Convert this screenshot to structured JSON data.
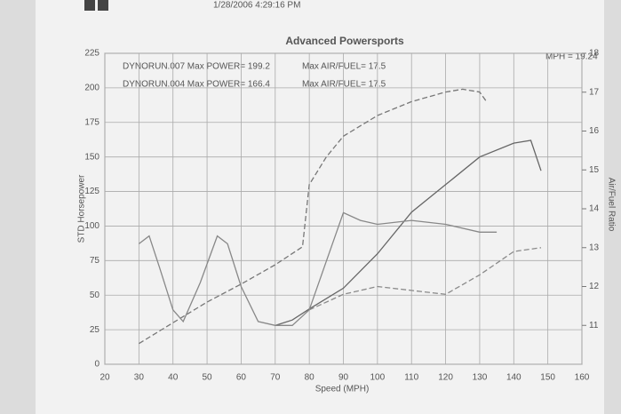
{
  "chart_data": {
    "type": "line",
    "header": "1/28/2006 4:29:16 PM",
    "title": "Advanced Powersports",
    "annotations": [
      "DYNORUN.007 Max POWER= 199.2",
      "Max AIR/FUEL= 17.5",
      "DYNORUN.004 Max POWER= 166.4",
      "Max AIR/FUEL= 17.5",
      "MPH = 19.24"
    ],
    "xlabel": "Speed (MPH)",
    "ylabel": "STD Horsepower",
    "y2label": "Air/Fuel Ratio",
    "xlim": [
      20,
      160
    ],
    "xticks": [
      20,
      30,
      40,
      50,
      60,
      70,
      80,
      90,
      100,
      110,
      120,
      130,
      140,
      150,
      160
    ],
    "ylim": [
      0,
      225
    ],
    "yticks": [
      0,
      25,
      50,
      75,
      100,
      125,
      150,
      175,
      200,
      225
    ],
    "y2lim": [
      10,
      18
    ],
    "y2ticks": [
      11,
      12,
      13,
      14,
      15,
      16,
      17,
      18
    ],
    "grid": true,
    "series": [
      {
        "color": "#777777",
        "dashed": true,
        "x": [
          30,
          40,
          50,
          60,
          70,
          78,
          80,
          85,
          90,
          100,
          110,
          120,
          125,
          130,
          132
        ],
        "values": [
          15,
          30,
          45,
          58,
          72,
          85,
          130,
          150,
          165,
          180,
          190,
          197,
          199,
          197,
          190
        ]
      },
      {
        "color": "#666666",
        "dashed": false,
        "x": [
          70,
          75,
          80,
          90,
          100,
          110,
          120,
          130,
          140,
          145,
          148
        ],
        "values": [
          28,
          32,
          40,
          55,
          80,
          110,
          130,
          150,
          160,
          162,
          140
        ]
      },
      {
        "color": "#888888",
        "dashed": false,
        "axis": "y2",
        "x": [
          30,
          33,
          36,
          40,
          43,
          48,
          53,
          56,
          60,
          65,
          70,
          75,
          80,
          90,
          95,
          100,
          110,
          120,
          130,
          135
        ],
        "values": [
          13.1,
          13.3,
          12.5,
          11.4,
          11.1,
          12.1,
          13.3,
          13.1,
          12.0,
          11.1,
          11.0,
          11.0,
          11.4,
          13.9,
          13.7,
          13.6,
          13.7,
          13.6,
          13.4,
          13.4
        ]
      },
      {
        "color": "#8a8a8a",
        "dashed": true,
        "axis": "y2",
        "x": [
          80,
          90,
          100,
          110,
          120,
          130,
          140,
          148
        ],
        "values": [
          11.4,
          11.8,
          12.0,
          11.9,
          11.8,
          12.3,
          12.9,
          13.0
        ]
      }
    ]
  }
}
